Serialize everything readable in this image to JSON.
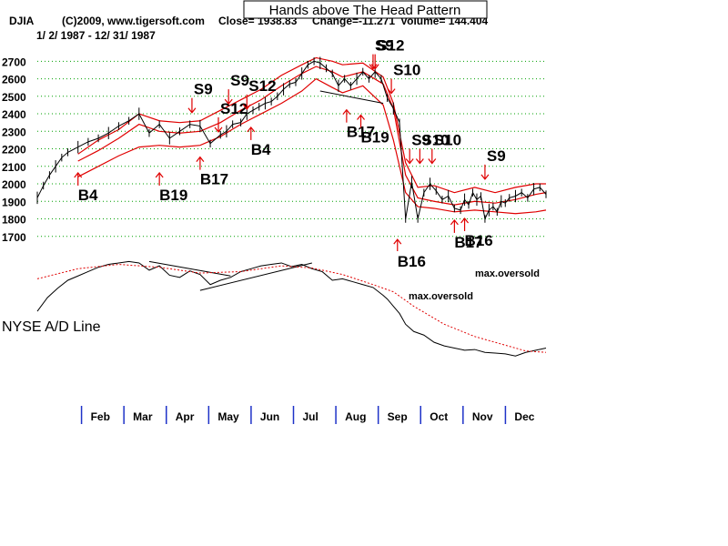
{
  "chart_data": {
    "type": "line",
    "title": "Hands above The Head Pattern",
    "header": {
      "symbol": "DJIA",
      "copyright": "(C)2009, www.tigersoft.com",
      "close": "Close=  1938.83",
      "change": "Change=-11.271",
      "volume": "Volume= 144.404",
      "date_range": "1/ 2/ 1987 - 12/ 31/ 1987"
    },
    "yticks": [
      1700,
      1800,
      1900,
      2000,
      2100,
      2200,
      2300,
      2400,
      2500,
      2600,
      2700
    ],
    "ylim": [
      1600,
      2790
    ],
    "grid": true,
    "months": [
      "Feb",
      "Mar",
      "Apr",
      "May",
      "Jun",
      "Jul",
      "Aug",
      "Sep",
      "Oct",
      "Nov",
      "Dec"
    ],
    "series": [
      {
        "name": "DJIA",
        "x": [
          0,
          3,
          6,
          9,
          12,
          15,
          20,
          25,
          30,
          35,
          40,
          45,
          50,
          55,
          60,
          65,
          70,
          75,
          80,
          85,
          90,
          93,
          96,
          100,
          103,
          106,
          109,
          112,
          115,
          118,
          121,
          124,
          127,
          130,
          133,
          136,
          139,
          142,
          145,
          148,
          151,
          154,
          157,
          160,
          163,
          166,
          169,
          172,
          175,
          178,
          181,
          184,
          187,
          190,
          193,
          196,
          199,
          202,
          205,
          208,
          210,
          212,
          214,
          216,
          218,
          220,
          222,
          224,
          226,
          228,
          230,
          232,
          235,
          238,
          241,
          244,
          247,
          250
        ],
        "values": [
          1920,
          1990,
          2050,
          2100,
          2150,
          2180,
          2210,
          2240,
          2260,
          2290,
          2330,
          2360,
          2400,
          2290,
          2340,
          2260,
          2300,
          2340,
          2330,
          2230,
          2280,
          2300,
          2340,
          2350,
          2400,
          2420,
          2440,
          2460,
          2470,
          2500,
          2540,
          2570,
          2580,
          2630,
          2680,
          2700,
          2690,
          2660,
          2630,
          2560,
          2600,
          2560,
          2600,
          2640,
          2600,
          2640,
          2600,
          2490,
          2430,
          2350,
          1800,
          2010,
          1800,
          1950,
          2000,
          1960,
          1910,
          1930,
          1860,
          1850,
          1910,
          1880,
          1950,
          1910,
          1930,
          1800,
          1850,
          1870,
          1840,
          1900,
          1890,
          1920,
          1930,
          1950,
          1920,
          1970,
          1980,
          1940
        ]
      },
      {
        "name": "upper band",
        "x": [
          20,
          30,
          40,
          50,
          60,
          70,
          80,
          90,
          100,
          110,
          120,
          130,
          137,
          145,
          150,
          160,
          170,
          175,
          181,
          187,
          195,
          205,
          215,
          225,
          235,
          245,
          250
        ],
        "values": [
          2170,
          2250,
          2310,
          2400,
          2360,
          2350,
          2360,
          2420,
          2480,
          2540,
          2620,
          2680,
          2720,
          2700,
          2680,
          2690,
          2610,
          2460,
          2120,
          1980,
          1990,
          1950,
          1980,
          1950,
          1980,
          2000,
          2000
        ]
      },
      {
        "name": "middle band",
        "x": [
          20,
          30,
          40,
          50,
          60,
          70,
          80,
          90,
          100,
          110,
          120,
          130,
          137,
          145,
          150,
          160,
          170,
          175,
          181,
          187,
          195,
          205,
          215,
          225,
          235,
          245,
          250
        ],
        "values": [
          2130,
          2190,
          2260,
          2340,
          2300,
          2290,
          2300,
          2350,
          2420,
          2480,
          2560,
          2630,
          2670,
          2640,
          2610,
          2640,
          2570,
          2430,
          2050,
          1920,
          1900,
          1880,
          1900,
          1890,
          1910,
          1940,
          1950
        ]
      },
      {
        "name": "lower band",
        "x": [
          20,
          30,
          40,
          50,
          60,
          70,
          80,
          90,
          100,
          110,
          120,
          130,
          137,
          145,
          150,
          160,
          170,
          175,
          181,
          187,
          195,
          205,
          215,
          225,
          235,
          245,
          250
        ],
        "values": [
          2040,
          2100,
          2160,
          2210,
          2220,
          2210,
          2220,
          2270,
          2340,
          2400,
          2460,
          2530,
          2600,
          2550,
          2520,
          2560,
          2450,
          2250,
          1950,
          1870,
          1860,
          1840,
          1850,
          1840,
          1830,
          1840,
          1850
        ]
      },
      {
        "name": "NYSE A/D Line",
        "x": [
          0,
          5,
          10,
          15,
          20,
          25,
          30,
          35,
          40,
          45,
          50,
          55,
          60,
          65,
          70,
          75,
          80,
          85,
          90,
          95,
          100,
          105,
          110,
          115,
          120,
          125,
          130,
          135,
          140,
          145,
          150,
          155,
          160,
          165,
          170,
          172,
          175,
          178,
          181,
          185,
          190,
          195,
          200,
          205,
          210,
          215,
          220,
          225,
          230,
          235,
          240,
          245,
          250
        ],
        "values": [
          0.23,
          0.42,
          0.55,
          0.66,
          0.72,
          0.78,
          0.84,
          0.88,
          0.9,
          0.92,
          0.9,
          0.8,
          0.86,
          0.73,
          0.7,
          0.79,
          0.74,
          0.6,
          0.66,
          0.7,
          0.78,
          0.82,
          0.86,
          0.88,
          0.9,
          0.85,
          0.88,
          0.82,
          0.78,
          0.66,
          0.68,
          0.64,
          0.6,
          0.56,
          0.45,
          0.4,
          0.3,
          0.2,
          0.05,
          -0.05,
          -0.1,
          -0.2,
          -0.25,
          -0.28,
          -0.31,
          -0.3,
          -0.34,
          -0.35,
          -0.36,
          -0.39,
          -0.34,
          -0.31,
          -0.28
        ]
      },
      {
        "name": "A/D moving average",
        "x": [
          0,
          20,
          40,
          60,
          80,
          100,
          120,
          135,
          150,
          165,
          175,
          185,
          200,
          215,
          230,
          240,
          250
        ],
        "values": [
          0.68,
          0.82,
          0.88,
          0.84,
          0.76,
          0.78,
          0.86,
          0.83,
          0.74,
          0.6,
          0.5,
          0.3,
          0.05,
          -0.12,
          -0.24,
          -0.32,
          -0.34
        ]
      }
    ],
    "trendlines": [
      {
        "name": "A/D trend 1",
        "x": [
          55,
          95
        ],
        "values": [
          0.92,
          0.72
        ]
      },
      {
        "name": "A/D trend 2",
        "x": [
          80,
          135
        ],
        "values": [
          0.52,
          0.9
        ]
      },
      {
        "name": "DJIA neckline",
        "x": [
          139,
          170
        ],
        "values": [
          2530,
          2460
        ]
      }
    ],
    "signals": [
      {
        "label": "B4",
        "x": 20,
        "y": 1990,
        "dir": "up"
      },
      {
        "label": "B19",
        "x": 60,
        "y": 1990,
        "dir": "up"
      },
      {
        "label": "B17",
        "x": 80,
        "y": 2080,
        "dir": "up"
      },
      {
        "label": "S9",
        "x": 76,
        "y": 2490,
        "dir": "down"
      },
      {
        "label": "S12",
        "x": 89,
        "y": 2380,
        "dir": "down"
      },
      {
        "label": "S9",
        "x": 94,
        "y": 2540,
        "dir": "down"
      },
      {
        "label": "S12",
        "x": 103,
        "y": 2510,
        "dir": "down"
      },
      {
        "label": "B4",
        "x": 105,
        "y": 2250,
        "dir": "up"
      },
      {
        "label": "B17",
        "x": 152,
        "y": 2350,
        "dir": "up"
      },
      {
        "label": "B19",
        "x": 159,
        "y": 2320,
        "dir": "up"
      },
      {
        "label": "S9",
        "x": 165,
        "y": 2740,
        "dir": "down"
      },
      {
        "label": "S12",
        "x": 166,
        "y": 2740,
        "dir": "down"
      },
      {
        "label": "S10",
        "x": 174,
        "y": 2600,
        "dir": "down"
      },
      {
        "label": "S9",
        "x": 183,
        "y": 2200,
        "dir": "down"
      },
      {
        "label": "S10",
        "x": 188,
        "y": 2200,
        "dir": "down"
      },
      {
        "label": "S10",
        "x": 194,
        "y": 2200,
        "dir": "down"
      },
      {
        "label": "B16",
        "x": 177,
        "y": 1610,
        "dir": "up"
      },
      {
        "label": "B17",
        "x": 205,
        "y": 1720,
        "dir": "up"
      },
      {
        "label": "B16",
        "x": 210,
        "y": 1730,
        "dir": "up"
      },
      {
        "label": "S9",
        "x": 220,
        "y": 2110,
        "dir": "down"
      }
    ],
    "annotations": [
      "max.oversold",
      "max.oversold",
      "NYSE A/D Line"
    ]
  }
}
